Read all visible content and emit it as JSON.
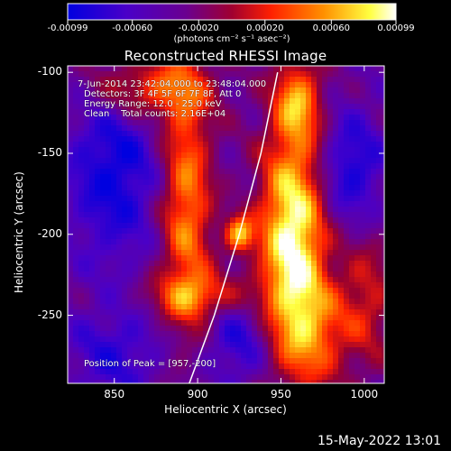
{
  "colorbar": {
    "ticks": [
      "-0.00099",
      "-0.00060",
      "-0.00020",
      "0.00020",
      "0.00060",
      "0.00099"
    ],
    "tick_values": [
      -0.00099,
      -0.0006,
      -0.0002,
      0.0002,
      0.0006,
      0.00099
    ],
    "range": [
      -0.00099,
      0.00099
    ],
    "units": "(photons cm⁻² s⁻¹ asec⁻²)",
    "colors": [
      "#0000e0",
      "#5500c0",
      "#6a0080",
      "#a00030",
      "#ff2000",
      "#ff9000",
      "#ffff40",
      "#ffffff"
    ]
  },
  "title": "Reconstructed RHESSI Image",
  "info": {
    "time_line": "7-Jun-2014 23:42:04.000 to 23:48:04.000",
    "detectors_line": "Detectors: 3F 4F 5F 6F 7F 8F, Att 0",
    "energy_line": "Energy Range: 12.0 - 25.0 keV",
    "clean_line": "Clean    Total counts: 2.16E+04"
  },
  "peak_label": "Position of Peak = [957,-200]",
  "footer_date": "15-May-2022 13:01",
  "chart_data": {
    "type": "heatmap",
    "title": "Reconstructed RHESSI Image",
    "xlabel": "Heliocentric X (arcsec)",
    "ylabel": "Heliocentric Y (arcsec)",
    "xlim": [
      822,
      1012
    ],
    "ylim": [
      -292,
      -96
    ],
    "x_ticks": [
      850,
      900,
      950,
      1000
    ],
    "y_ticks": [
      -100,
      -150,
      -200,
      -250
    ],
    "x_tick_labels": [
      "850",
      "900",
      "950",
      "1000"
    ],
    "y_tick_labels": [
      "-100",
      "-150",
      "-200",
      "-250"
    ],
    "peak": [
      957,
      -200
    ],
    "limb_points": [
      [
        895,
        -292
      ],
      [
        910,
        -250
      ],
      [
        925,
        -200
      ],
      [
        938,
        -150
      ],
      [
        948,
        -100
      ]
    ],
    "sources": [
      {
        "x": 957,
        "y": -200,
        "sx": 14,
        "sy": 45,
        "amp": 1.0
      },
      {
        "x": 925,
        "y": -200,
        "sx": 6,
        "sy": 8,
        "amp": 0.7
      },
      {
        "x": 893,
        "y": -180,
        "sx": 11,
        "sy": 55,
        "amp": 0.65
      },
      {
        "x": 870,
        "y": -110,
        "sx": 25,
        "sy": 14,
        "amp": 0.55
      },
      {
        "x": 960,
        "y": -118,
        "sx": 10,
        "sy": 18,
        "amp": 0.6
      },
      {
        "x": 968,
        "y": -262,
        "sx": 16,
        "sy": 25,
        "amp": 0.5
      },
      {
        "x": 902,
        "y": -238,
        "sx": 22,
        "sy": 10,
        "amp": 0.45
      },
      {
        "x": 1002,
        "y": -240,
        "sx": 12,
        "sy": 30,
        "amp": 0.35
      }
    ],
    "sinks": [
      {
        "x": 850,
        "y": -160,
        "sx": 20,
        "sy": 40,
        "amp": 0.6
      },
      {
        "x": 992,
        "y": -160,
        "sx": 14,
        "sy": 25,
        "amp": 0.55
      },
      {
        "x": 925,
        "y": -265,
        "sx": 14,
        "sy": 20,
        "amp": 0.45
      },
      {
        "x": 850,
        "y": -275,
        "sx": 20,
        "sy": 20,
        "amp": 0.4
      }
    ]
  }
}
